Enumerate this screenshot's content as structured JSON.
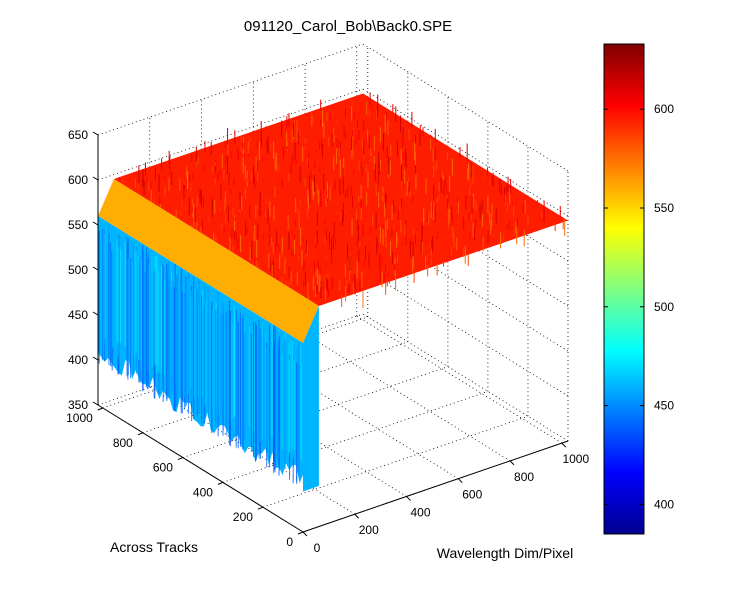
{
  "chart_data": {
    "type": "surface",
    "title": "091120_Carol_Bob\\Back0.SPE",
    "xlabel": "Wavelength Dim/Pixel",
    "ylabel": "Across Tracks",
    "zlabel": "",
    "x_ticks": [
      "0",
      "200",
      "400",
      "600",
      "800",
      "1000"
    ],
    "y_ticks": [
      "0",
      "200",
      "400",
      "600",
      "800",
      "1000"
    ],
    "z_ticks": [
      "350",
      "400",
      "450",
      "500",
      "550",
      "600",
      "650"
    ],
    "xlim": [
      0,
      1024
    ],
    "ylim": [
      0,
      1024
    ],
    "zlim": [
      350,
      650
    ],
    "grid": true,
    "colormap": "jet",
    "colorbar": {
      "range": [
        385,
        633
      ],
      "ticks": [
        "400",
        "450",
        "500",
        "550",
        "600"
      ],
      "placement": "right"
    },
    "surface_summary": {
      "plateau_level": 595,
      "edge_level": 560,
      "edge_front_level": 460,
      "edge_front_min": 395
    }
  }
}
